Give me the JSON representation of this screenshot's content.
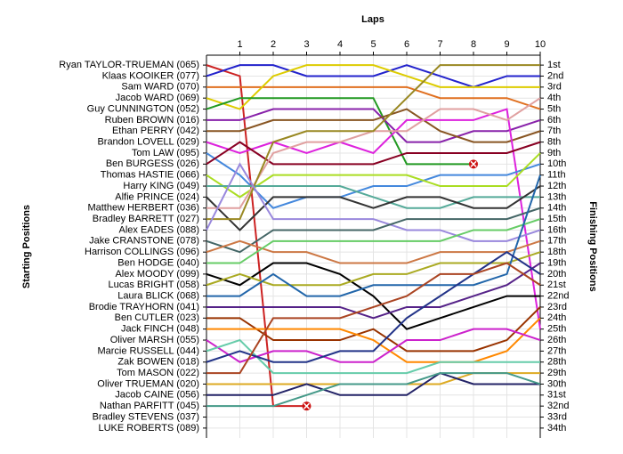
{
  "chart_data": {
    "type": "line",
    "title": "Laps",
    "y_label": "Starting Positions",
    "y2_label": "Finishing Positions",
    "x": [
      0,
      1,
      2,
      3,
      4,
      5,
      6,
      7,
      8,
      9,
      10
    ],
    "xlim": [
      0,
      10
    ],
    "xticks": [
      1,
      2,
      3,
      4,
      5,
      6,
      7,
      8,
      9,
      10
    ],
    "ylim": [
      0.1,
      34.9
    ],
    "yticks": [
      1,
      2,
      3,
      4,
      5,
      6,
      7,
      8,
      9,
      10,
      11,
      12,
      13,
      14,
      15,
      16,
      17,
      18,
      19,
      20,
      21,
      22,
      23,
      24,
      25,
      26,
      27,
      28,
      29,
      30,
      31,
      32,
      33,
      34
    ],
    "y2lim": [
      0.1,
      34.9
    ],
    "y2ticks": [
      {
        "value": 1,
        "label": "1st"
      },
      {
        "value": 2,
        "label": "2nd"
      },
      {
        "value": 3,
        "label": "3rd"
      },
      {
        "value": 4,
        "label": "4th"
      },
      {
        "value": 5,
        "label": "5th"
      },
      {
        "value": 6,
        "label": "6th"
      },
      {
        "value": 7,
        "label": "7th"
      },
      {
        "value": 8,
        "label": "8th"
      },
      {
        "value": 9,
        "label": "9th"
      },
      {
        "value": 10,
        "label": "10th"
      },
      {
        "value": 11,
        "label": "11th"
      },
      {
        "value": 12,
        "label": "12th"
      },
      {
        "value": 13,
        "label": "13th"
      },
      {
        "value": 14,
        "label": "14th"
      },
      {
        "value": 15,
        "label": "15th"
      },
      {
        "value": 16,
        "label": "16th"
      },
      {
        "value": 17,
        "label": "17th"
      },
      {
        "value": 18,
        "label": "18th"
      },
      {
        "value": 19,
        "label": "19th"
      },
      {
        "value": 20,
        "label": "20th"
      },
      {
        "value": 21,
        "label": "21st"
      },
      {
        "value": 22,
        "label": "22nd"
      },
      {
        "value": 23,
        "label": "23rd"
      },
      {
        "value": 24,
        "label": "24th"
      },
      {
        "value": 25,
        "label": "25th"
      },
      {
        "value": 26,
        "label": "26th"
      },
      {
        "value": 27,
        "label": "27th"
      },
      {
        "value": 28,
        "label": "28th"
      },
      {
        "value": 29,
        "label": "29th"
      },
      {
        "value": 30,
        "label": "30th"
      },
      {
        "value": 31,
        "label": "31st"
      },
      {
        "value": 32,
        "label": "32nd"
      },
      {
        "value": 33,
        "label": "33rd"
      },
      {
        "value": 34,
        "label": "34th"
      }
    ],
    "grid": true,
    "inverted_y": true,
    "series": [
      {
        "name": "Ryan TAYLOR-TRUEMAN (065)",
        "color": "#cc2222",
        "values": [
          1,
          2,
          32,
          32,
          null,
          null,
          null,
          null,
          null,
          null,
          null
        ]
      },
      {
        "name": "Klaas KOOIKER (077)",
        "color": "#2222cc",
        "values": [
          2,
          1,
          1,
          2,
          2,
          2,
          1,
          2,
          3,
          2,
          2
        ]
      },
      {
        "name": "Sam WARD (070)",
        "color": "#e07020",
        "values": [
          3,
          3,
          3,
          3,
          3,
          3,
          3,
          4,
          4,
          4,
          5
        ]
      },
      {
        "name": "Jacob WARD (069)",
        "color": "#ddcc00",
        "values": [
          4,
          5,
          2,
          1,
          1,
          1,
          2,
          3,
          3,
          3,
          3
        ]
      },
      {
        "name": "Guy CUNNINGTON (052)",
        "color": "#229922",
        "values": [
          5,
          4,
          4,
          4,
          4,
          4,
          10,
          10,
          10,
          null,
          null
        ]
      },
      {
        "name": "Ruben BROWN (016)",
        "color": "#8822aa",
        "values": [
          6,
          6,
          5,
          5,
          5,
          5,
          8,
          8,
          7,
          7,
          6
        ]
      },
      {
        "name": "Ethan PERRY (042)",
        "color": "#885522",
        "values": [
          7,
          7,
          6,
          6,
          6,
          6,
          5,
          7,
          8,
          8,
          7
        ]
      },
      {
        "name": "Brandon LOVELL (029)",
        "color": "#dd22dd",
        "values": [
          8,
          9,
          8,
          9,
          8,
          9,
          6,
          6,
          6,
          5,
          25
        ]
      },
      {
        "name": "Tom LAW (095)",
        "color": "#4488dd",
        "values": [
          9,
          11,
          14,
          13,
          13,
          12,
          12,
          11,
          11,
          11,
          10
        ]
      },
      {
        "name": "Ben BURGESS (026)",
        "color": "#880022",
        "values": [
          10,
          8,
          10,
          10,
          10,
          10,
          9,
          9,
          9,
          9,
          8
        ]
      },
      {
        "name": "Thomas HASTIE (066)",
        "color": "#aadd22",
        "values": [
          11,
          13,
          11,
          11,
          11,
          11,
          11,
          12,
          12,
          12,
          9
        ]
      },
      {
        "name": "Harry KING (049)",
        "color": "#55aa99",
        "values": [
          12,
          12,
          12,
          12,
          12,
          13,
          14,
          14,
          13,
          13,
          13
        ]
      },
      {
        "name": "Alfie PRINCE (024)",
        "color": "#333333",
        "values": [
          13,
          16,
          13,
          13,
          13,
          14,
          13,
          13,
          14,
          14,
          12
        ]
      },
      {
        "name": "Matthew HERBERT (036)",
        "color": "#e0a0a0",
        "values": [
          14,
          14,
          9,
          8,
          8,
          7,
          7,
          5,
          5,
          6,
          4
        ]
      },
      {
        "name": "Bradley BARRETT (027)",
        "color": "#998822",
        "values": [
          15,
          15,
          8,
          7,
          7,
          7,
          4,
          1,
          1,
          1,
          1
        ]
      },
      {
        "name": "Alex EADES (088)",
        "color": "#9988dd",
        "values": [
          16,
          10,
          15,
          15,
          15,
          15,
          16,
          16,
          17,
          17,
          16
        ]
      },
      {
        "name": "Jake CRANSTONE (078)",
        "color": "#446666",
        "values": [
          17,
          18,
          16,
          16,
          16,
          16,
          15,
          15,
          15,
          15,
          14
        ]
      },
      {
        "name": "Harrison COLLINGS (096)",
        "color": "#cc7744",
        "values": [
          18,
          17,
          18,
          18,
          19,
          19,
          19,
          18,
          18,
          18,
          17
        ]
      },
      {
        "name": "Ben HODGE (040)",
        "color": "#66cc66",
        "values": [
          19,
          19,
          17,
          17,
          17,
          17,
          17,
          17,
          16,
          16,
          15
        ]
      },
      {
        "name": "Alex MOODY (099)",
        "color": "#000000",
        "values": [
          20,
          21,
          19,
          19,
          20,
          22,
          25,
          24,
          23,
          22,
          22
        ]
      },
      {
        "name": "Lucas BRIGHT (058)",
        "color": "#aaaa22",
        "values": [
          21,
          20,
          21,
          21,
          21,
          20,
          20,
          19,
          19,
          19,
          18
        ]
      },
      {
        "name": "Laura BLICK (068)",
        "color": "#2266aa",
        "values": [
          22,
          22,
          20,
          22,
          22,
          21,
          21,
          21,
          21,
          20,
          11
        ]
      },
      {
        "name": "Brodie TRAYHORN (041)",
        "color": "#552288",
        "values": [
          23,
          23,
          23,
          23,
          23,
          24,
          23,
          23,
          22,
          21,
          19
        ]
      },
      {
        "name": "Ben CUTLER (023)",
        "color": "#993300",
        "values": [
          24,
          24,
          26,
          26,
          26,
          25,
          27,
          27,
          27,
          26,
          23
        ]
      },
      {
        "name": "Jack FINCH (048)",
        "color": "#ff8800",
        "values": [
          25,
          25,
          25,
          25,
          25,
          26,
          28,
          28,
          28,
          27,
          24
        ]
      },
      {
        "name": "Oliver MARSH (055)",
        "color": "#cc22cc",
        "values": [
          26,
          28,
          27,
          27,
          28,
          28,
          26,
          26,
          25,
          25,
          26
        ]
      },
      {
        "name": "Marcie RUSSELL (044)",
        "color": "#66ccaa",
        "values": [
          27,
          26,
          29,
          29,
          29,
          29,
          29,
          28,
          28,
          28,
          28
        ]
      },
      {
        "name": "Zak BOWEN (018)",
        "color": "#223388",
        "values": [
          28,
          27,
          28,
          28,
          27,
          27,
          24,
          22,
          20,
          18,
          20
        ]
      },
      {
        "name": "Tom MASON (022)",
        "color": "#aa4422",
        "values": [
          29,
          29,
          24,
          24,
          24,
          23,
          22,
          20,
          20,
          19,
          21
        ]
      },
      {
        "name": "Oliver TRUEMAN (020)",
        "color": "#ddaa22",
        "values": [
          30,
          30,
          30,
          30,
          30,
          30,
          30,
          30,
          29,
          29,
          29
        ]
      },
      {
        "name": "Jacob CAINE (056)",
        "color": "#222266",
        "values": [
          31,
          31,
          31,
          30,
          31,
          31,
          31,
          29,
          30,
          30,
          30
        ]
      },
      {
        "name": "Nathan PARFITT (045)",
        "color": "#449988",
        "values": [
          32,
          32,
          32,
          31,
          30,
          30,
          30,
          29,
          29,
          29,
          30
        ]
      },
      {
        "name": "Bradley STEVENS (037)",
        "color": "#888888",
        "values": [
          33,
          null,
          null,
          null,
          null,
          null,
          null,
          null,
          null,
          null,
          null
        ]
      },
      {
        "name": "LUKE ROBERTS (089)",
        "color": "#888888",
        "values": [
          34,
          null,
          null,
          null,
          null,
          null,
          null,
          null,
          null,
          null,
          null
        ]
      }
    ]
  }
}
